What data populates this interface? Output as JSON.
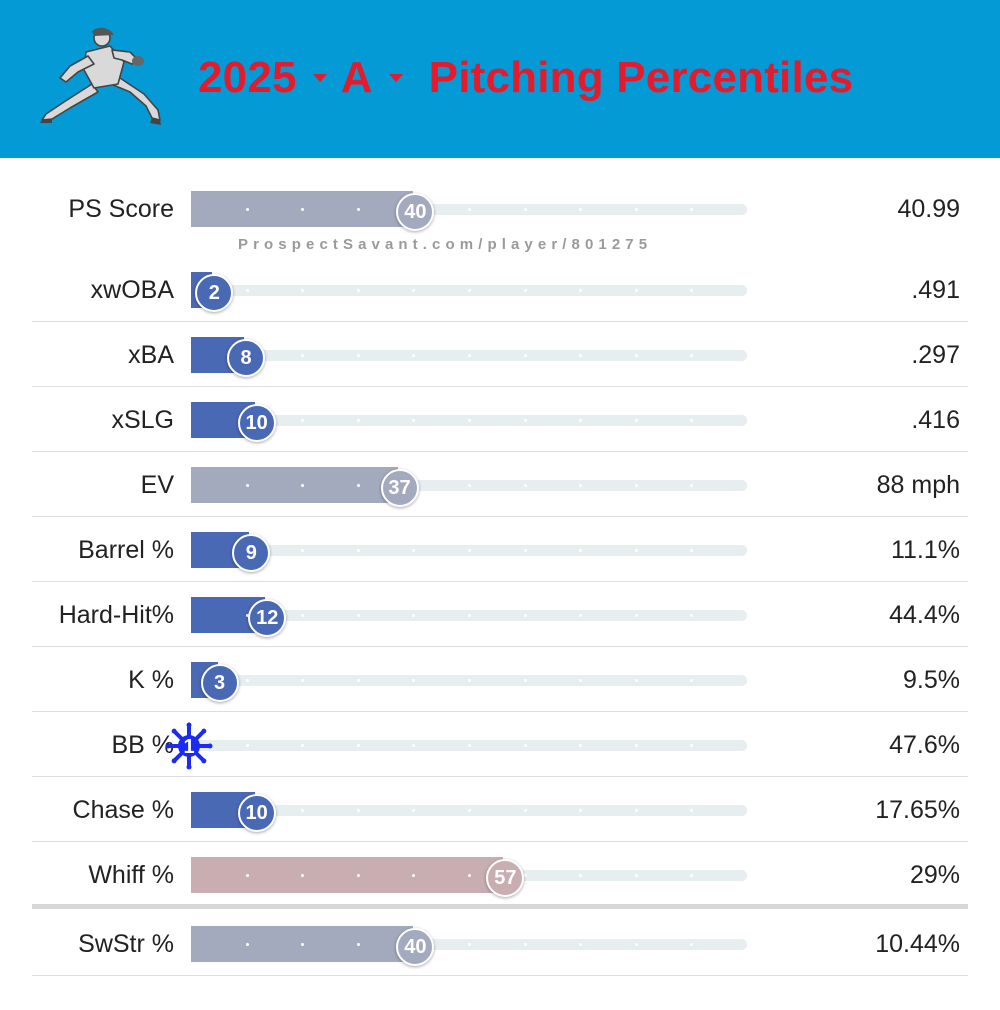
{
  "header": {
    "year": "2025",
    "level": "A",
    "title": "Pitching Percentiles",
    "background_color": "#049ad6",
    "title_color": "#e31b2c"
  },
  "watermark": "ProspectSavant.com/player/801275",
  "rows": [
    {
      "label": "PS Score",
      "percentile": 40,
      "value": "40.99",
      "color": "#a3aabd"
    },
    {
      "label": "xwOBA",
      "percentile": 2,
      "value": ".491",
      "color": "#4a69b4"
    },
    {
      "label": "xBA",
      "percentile": 8,
      "value": ".297",
      "color": "#4a69b4"
    },
    {
      "label": "xSLG",
      "percentile": 10,
      "value": ".416",
      "color": "#4a69b4"
    },
    {
      "label": "EV",
      "percentile": 37,
      "value": "88 mph",
      "color": "#a3aabd"
    },
    {
      "label": "Barrel %",
      "percentile": 9,
      "value": "11.1%",
      "color": "#4a69b4"
    },
    {
      "label": "Hard-Hit%",
      "percentile": 12,
      "value": "44.4%",
      "color": "#4a69b4"
    },
    {
      "label": "K %",
      "percentile": 3,
      "value": "9.5%",
      "color": "#4a69b4"
    },
    {
      "label": "BB %",
      "percentile": 1,
      "value": "47.6%",
      "color": "#1c2bf0",
      "badge_icon": "snowflake-icon"
    },
    {
      "label": "Chase %",
      "percentile": 10,
      "value": "17.65%",
      "color": "#4a69b4"
    },
    {
      "label": "Whiff %",
      "percentile": 57,
      "value": "29%",
      "color": "#c8aeb1"
    },
    {
      "label": "SwStr %",
      "percentile": 40,
      "value": "10.44%",
      "color": "#a3aabd"
    }
  ]
}
